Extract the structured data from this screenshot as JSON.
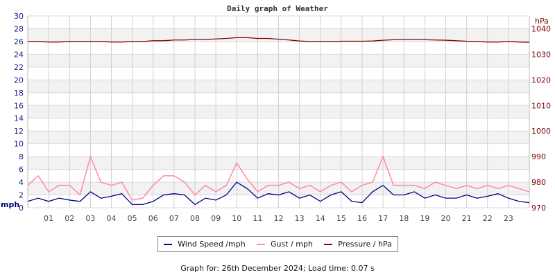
{
  "chart_data": {
    "type": "line",
    "title": "Daily graph of Weather",
    "ylabel_left": "mph",
    "ylabel_right": "hPa",
    "ylim_left": [
      0,
      30
    ],
    "ylim_right": [
      970,
      1045
    ],
    "yticks_left": [
      0,
      2,
      4,
      6,
      8,
      10,
      12,
      14,
      16,
      18,
      20,
      22,
      24,
      26,
      28,
      30
    ],
    "yticks_right": [
      970,
      980,
      990,
      1000,
      1010,
      1020,
      1030,
      1040
    ],
    "xlim_hours": [
      0,
      24
    ],
    "xticks": [
      "01",
      "02",
      "03",
      "04",
      "05",
      "06",
      "07",
      "08",
      "09",
      "10",
      "11",
      "12",
      "13",
      "14",
      "15",
      "16",
      "17",
      "18",
      "19",
      "20",
      "21",
      "22",
      "23"
    ],
    "grid": true,
    "x_hours": [
      0,
      0.5,
      1,
      1.5,
      2,
      2.5,
      3,
      3.5,
      4,
      4.5,
      5,
      5.5,
      6,
      6.5,
      7,
      7.5,
      8,
      8.5,
      9,
      9.5,
      10,
      10.5,
      11,
      11.5,
      12,
      12.5,
      13,
      13.5,
      14,
      14.5,
      15,
      15.5,
      16,
      16.5,
      17,
      17.5,
      18,
      18.5,
      19,
      19.5,
      20,
      20.5,
      21,
      21.5,
      22,
      22.5,
      23,
      23.5,
      24
    ],
    "series": [
      {
        "name": "Wind Speed /mph",
        "axis": "left",
        "color": "#000080",
        "values": [
          1.0,
          1.5,
          1.0,
          1.5,
          1.2,
          1.0,
          2.5,
          1.5,
          1.8,
          2.2,
          0.5,
          0.5,
          1.0,
          2.0,
          2.2,
          2.0,
          0.5,
          1.5,
          1.2,
          2.0,
          4.0,
          3.0,
          1.5,
          2.2,
          2.0,
          2.5,
          1.5,
          2.0,
          1.0,
          2.0,
          2.5,
          1.0,
          0.8,
          2.5,
          3.5,
          2.0,
          2.0,
          2.5,
          1.5,
          2.0,
          1.5,
          1.5,
          2.0,
          1.5,
          1.8,
          2.2,
          1.5,
          1.0,
          0.8
        ]
      },
      {
        "name": "Gust / mph",
        "axis": "left",
        "color": "#ff88aa",
        "values": [
          3.5,
          5.0,
          2.5,
          3.5,
          3.5,
          2.0,
          8.0,
          4.0,
          3.5,
          4.0,
          1.2,
          1.5,
          3.5,
          5.0,
          5.0,
          4.0,
          2.0,
          3.5,
          2.5,
          3.5,
          7.0,
          4.5,
          2.5,
          3.5,
          3.5,
          4.0,
          3.0,
          3.5,
          2.5,
          3.5,
          4.0,
          2.5,
          3.5,
          4.0,
          8.0,
          3.5,
          3.5,
          3.5,
          3.0,
          4.0,
          3.5,
          3.0,
          3.5,
          3.0,
          3.5,
          3.0,
          3.5,
          3.0,
          2.5
        ]
      },
      {
        "name": "Pressure / hPa",
        "axis": "right",
        "color": "#8b0000",
        "values": [
          1035.0,
          1035.0,
          1034.8,
          1034.8,
          1035.0,
          1035.0,
          1035.0,
          1035.0,
          1034.8,
          1034.8,
          1035.0,
          1035.0,
          1035.3,
          1035.3,
          1035.6,
          1035.6,
          1035.8,
          1035.8,
          1036.0,
          1036.2,
          1036.5,
          1036.5,
          1036.2,
          1036.2,
          1035.9,
          1035.6,
          1035.2,
          1035.0,
          1035.0,
          1035.0,
          1035.1,
          1035.1,
          1035.1,
          1035.2,
          1035.5,
          1035.7,
          1035.8,
          1035.8,
          1035.7,
          1035.6,
          1035.5,
          1035.3,
          1035.1,
          1035.0,
          1034.8,
          1034.8,
          1035.0,
          1034.8,
          1034.7
        ]
      }
    ]
  },
  "footer": "Graph for: 26th December 2024; Load time: 0.07 s"
}
